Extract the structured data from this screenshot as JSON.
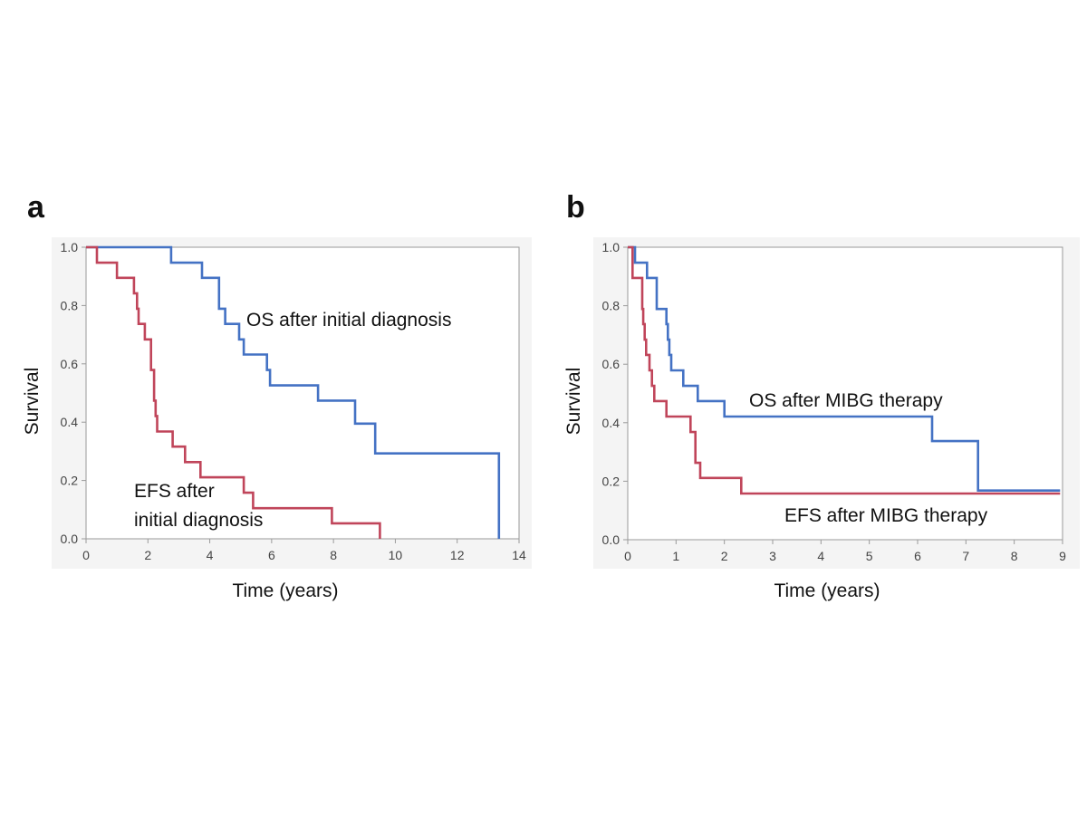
{
  "chart_data": [
    {
      "panel_label": "a",
      "type": "line",
      "step": true,
      "xlabel": "Time (years)",
      "ylabel": "Survival",
      "xlim": [
        0,
        14
      ],
      "ylim": [
        0,
        1
      ],
      "xticks": [
        "0",
        "2",
        "4",
        "6",
        "8",
        "10",
        "12",
        "14"
      ],
      "yticks": [
        "0.0",
        "0.2",
        "0.4",
        "0.6",
        "0.8",
        "1.0"
      ],
      "grid": false,
      "series": [
        {
          "color": "#4472c4",
          "points": [
            [
              0,
              1.0
            ],
            [
              2.75,
              1.0
            ],
            [
              2.75,
              0.947
            ],
            [
              3.75,
              0.947
            ],
            [
              3.75,
              0.895
            ],
            [
              4.3,
              0.895
            ],
            [
              4.3,
              0.789
            ],
            [
              4.5,
              0.789
            ],
            [
              4.5,
              0.737
            ],
            [
              4.95,
              0.737
            ],
            [
              4.95,
              0.684
            ],
            [
              5.1,
              0.684
            ],
            [
              5.1,
              0.632
            ],
            [
              5.85,
              0.632
            ],
            [
              5.85,
              0.579
            ],
            [
              5.95,
              0.579
            ],
            [
              5.95,
              0.526
            ],
            [
              7.5,
              0.526
            ],
            [
              7.5,
              0.474
            ],
            [
              8.7,
              0.474
            ],
            [
              8.7,
              0.395
            ],
            [
              9.35,
              0.395
            ],
            [
              9.35,
              0.293
            ],
            [
              13.35,
              0.293
            ],
            [
              13.35,
              0.0
            ]
          ]
        },
        {
          "color": "#c0455a",
          "points": [
            [
              0,
              1.0
            ],
            [
              0.35,
              1.0
            ],
            [
              0.35,
              0.947
            ],
            [
              1.0,
              0.947
            ],
            [
              1.0,
              0.895
            ],
            [
              1.55,
              0.895
            ],
            [
              1.55,
              0.842
            ],
            [
              1.65,
              0.842
            ],
            [
              1.65,
              0.789
            ],
            [
              1.7,
              0.789
            ],
            [
              1.7,
              0.737
            ],
            [
              1.9,
              0.737
            ],
            [
              1.9,
              0.684
            ],
            [
              2.1,
              0.684
            ],
            [
              2.1,
              0.579
            ],
            [
              2.2,
              0.579
            ],
            [
              2.2,
              0.474
            ],
            [
              2.25,
              0.474
            ],
            [
              2.25,
              0.421
            ],
            [
              2.3,
              0.421
            ],
            [
              2.3,
              0.368
            ],
            [
              2.8,
              0.368
            ],
            [
              2.8,
              0.316
            ],
            [
              3.2,
              0.316
            ],
            [
              3.2,
              0.263
            ],
            [
              3.7,
              0.263
            ],
            [
              3.7,
              0.211
            ],
            [
              5.1,
              0.211
            ],
            [
              5.1,
              0.158
            ],
            [
              5.4,
              0.158
            ],
            [
              5.4,
              0.105
            ],
            [
              7.95,
              0.105
            ],
            [
              7.95,
              0.053
            ],
            [
              9.5,
              0.053
            ],
            [
              9.5,
              0.0
            ]
          ]
        }
      ],
      "annotations": [
        {
          "lines": [
            "OS after initial diagnosis"
          ]
        },
        {
          "lines": [
            "EFS after",
            "initial diagnosis"
          ]
        }
      ]
    },
    {
      "panel_label": "b",
      "type": "line",
      "step": true,
      "xlabel": "Time (years)",
      "ylabel": "Survival",
      "xlim": [
        0,
        9
      ],
      "ylim": [
        0,
        1
      ],
      "xticks": [
        "0",
        "1",
        "2",
        "3",
        "4",
        "5",
        "6",
        "7",
        "8",
        "9"
      ],
      "yticks": [
        "0.0",
        "0.2",
        "0.4",
        "0.6",
        "0.8",
        "1.0"
      ],
      "grid": false,
      "series": [
        {
          "color": "#4472c4",
          "points": [
            [
              0,
              1.0
            ],
            [
              0.15,
              1.0
            ],
            [
              0.15,
              0.947
            ],
            [
              0.4,
              0.947
            ],
            [
              0.4,
              0.895
            ],
            [
              0.6,
              0.895
            ],
            [
              0.6,
              0.789
            ],
            [
              0.8,
              0.789
            ],
            [
              0.8,
              0.737
            ],
            [
              0.83,
              0.737
            ],
            [
              0.83,
              0.684
            ],
            [
              0.86,
              0.684
            ],
            [
              0.86,
              0.632
            ],
            [
              0.9,
              0.632
            ],
            [
              0.9,
              0.579
            ],
            [
              1.15,
              0.579
            ],
            [
              1.15,
              0.526
            ],
            [
              1.45,
              0.526
            ],
            [
              1.45,
              0.474
            ],
            [
              2.0,
              0.474
            ],
            [
              2.0,
              0.421
            ],
            [
              6.3,
              0.421
            ],
            [
              6.3,
              0.337
            ],
            [
              7.25,
              0.337
            ],
            [
              7.25,
              0.168
            ],
            [
              8.95,
              0.168
            ]
          ]
        },
        {
          "color": "#c0455a",
          "points": [
            [
              0,
              1.0
            ],
            [
              0.1,
              1.0
            ],
            [
              0.1,
              0.895
            ],
            [
              0.3,
              0.895
            ],
            [
              0.3,
              0.789
            ],
            [
              0.32,
              0.789
            ],
            [
              0.32,
              0.737
            ],
            [
              0.35,
              0.737
            ],
            [
              0.35,
              0.684
            ],
            [
              0.38,
              0.684
            ],
            [
              0.38,
              0.632
            ],
            [
              0.45,
              0.632
            ],
            [
              0.45,
              0.579
            ],
            [
              0.5,
              0.579
            ],
            [
              0.5,
              0.526
            ],
            [
              0.55,
              0.526
            ],
            [
              0.55,
              0.474
            ],
            [
              0.8,
              0.474
            ],
            [
              0.8,
              0.421
            ],
            [
              1.3,
              0.421
            ],
            [
              1.3,
              0.368
            ],
            [
              1.4,
              0.368
            ],
            [
              1.4,
              0.263
            ],
            [
              1.5,
              0.263
            ],
            [
              1.5,
              0.211
            ],
            [
              2.35,
              0.211
            ],
            [
              2.35,
              0.158
            ],
            [
              8.95,
              0.158
            ]
          ]
        }
      ],
      "annotations": [
        {
          "lines": [
            "OS after MIBG therapy"
          ]
        },
        {
          "lines": [
            "EFS after MIBG therapy"
          ]
        }
      ]
    }
  ]
}
